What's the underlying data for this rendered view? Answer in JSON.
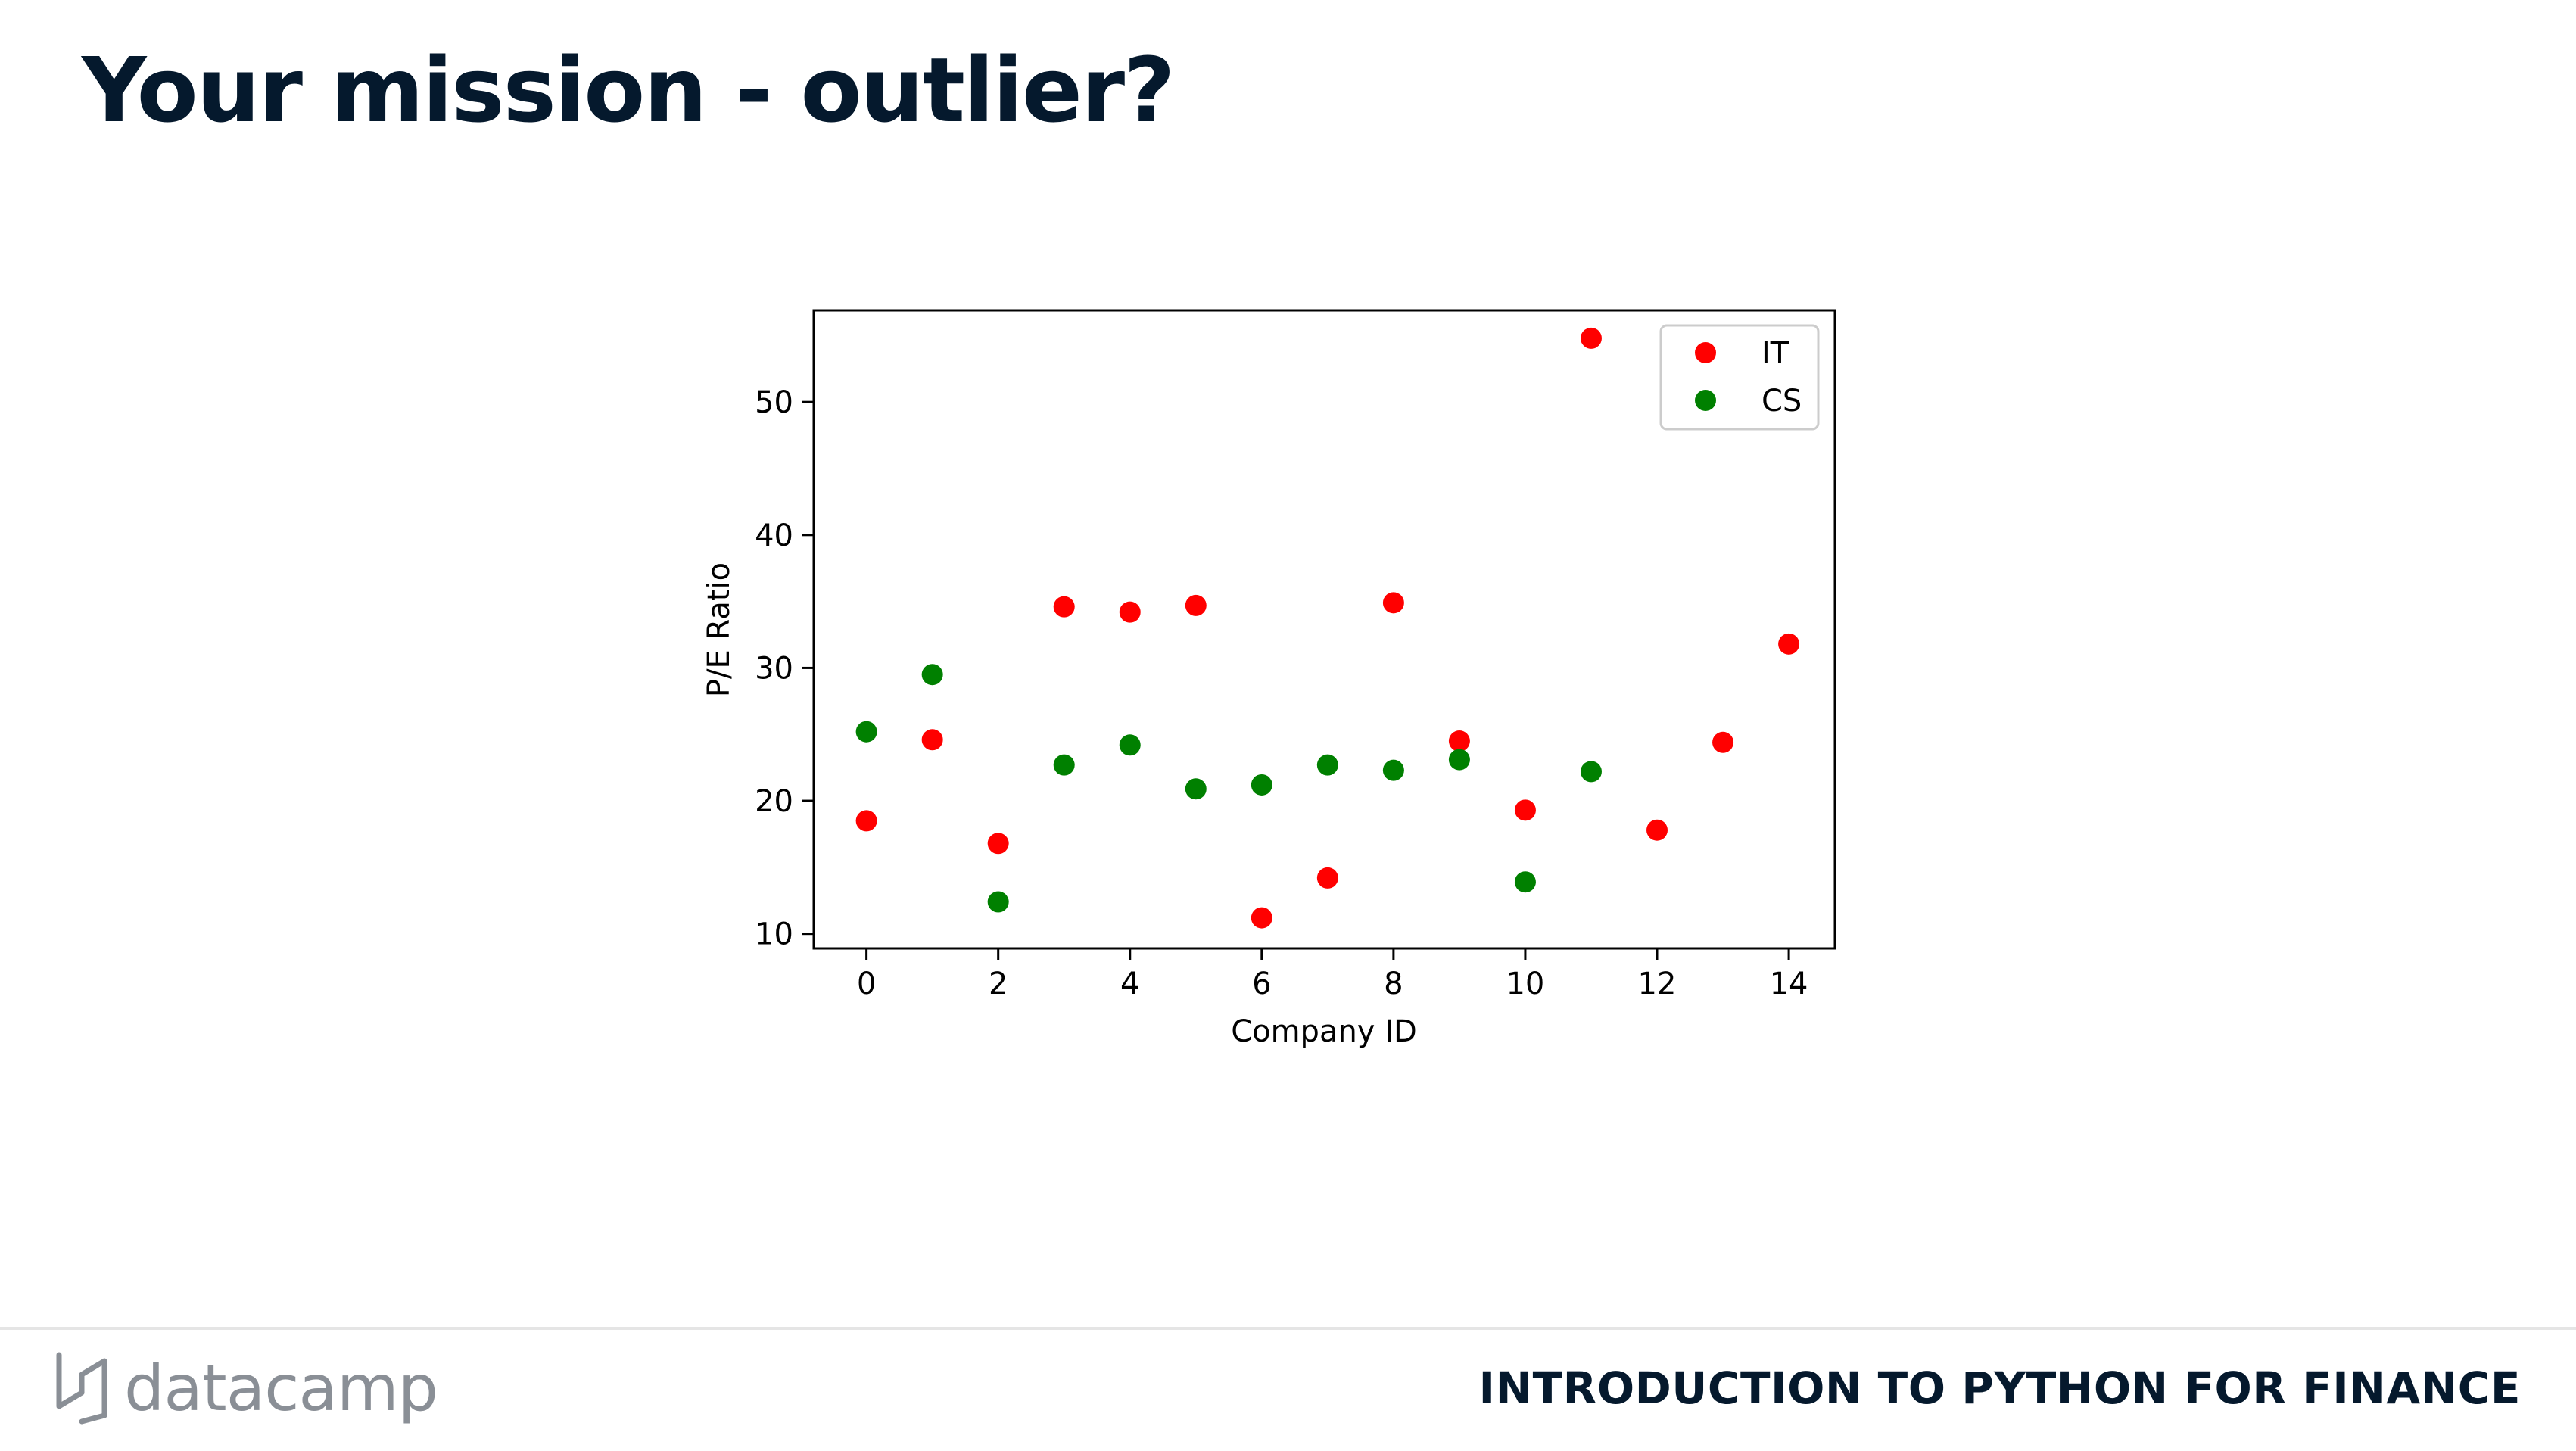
{
  "slide": {
    "title": "Your mission - outlier?",
    "course": "INTRODUCTION TO PYTHON FOR FINANCE",
    "logo_text": "datacamp"
  },
  "chart_data": {
    "type": "scatter",
    "xlabel": "Company ID",
    "ylabel": "P/E Ratio",
    "xlim": [
      -0.8,
      14.7
    ],
    "ylim": [
      8.9,
      56.9
    ],
    "xticks": [
      0,
      2,
      4,
      6,
      8,
      10,
      12,
      14
    ],
    "yticks": [
      10,
      20,
      30,
      40,
      50
    ],
    "grid": false,
    "legend_position": "top-right",
    "series": [
      {
        "name": "IT",
        "color": "#ff0000",
        "x": [
          0,
          1,
          2,
          3,
          4,
          5,
          6,
          7,
          8,
          9,
          10,
          11,
          12,
          13,
          14
        ],
        "y": [
          18.5,
          24.6,
          16.8,
          34.6,
          34.2,
          34.7,
          11.2,
          14.2,
          34.9,
          24.5,
          19.3,
          54.8,
          17.8,
          24.4,
          31.8
        ]
      },
      {
        "name": "CS",
        "color": "#008000",
        "x": [
          0,
          1,
          2,
          3,
          4,
          5,
          6,
          7,
          8,
          9,
          10,
          11
        ],
        "y": [
          25.2,
          29.5,
          12.4,
          22.7,
          24.2,
          20.9,
          21.2,
          22.7,
          22.3,
          23.1,
          13.9,
          22.2
        ]
      }
    ]
  }
}
